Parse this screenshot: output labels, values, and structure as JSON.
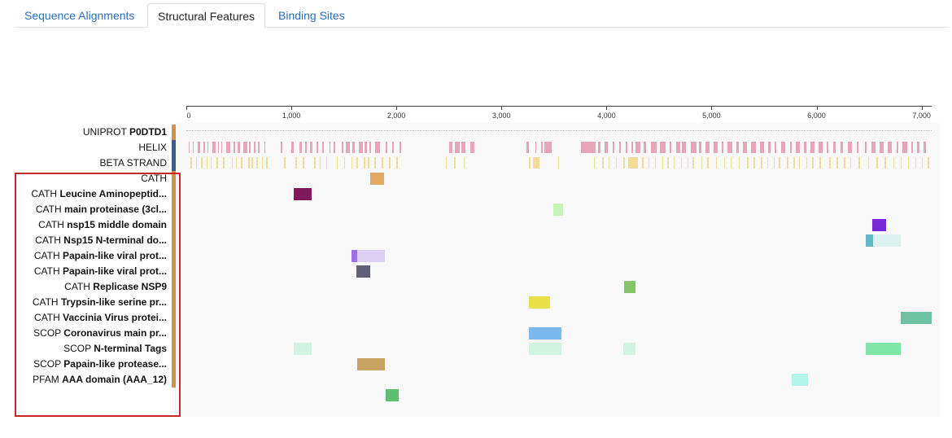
{
  "tabs": [
    {
      "label": "Sequence Alignments",
      "active": false
    },
    {
      "label": "Structural Features",
      "active": true
    },
    {
      "label": "Binding Sites",
      "active": false
    }
  ],
  "ruler": {
    "min": 0,
    "max": 7096,
    "ticks": [
      {
        "value": 0,
        "label": "0"
      },
      {
        "value": 1000,
        "label": "1,000"
      },
      {
        "value": 2000,
        "label": "2,000"
      },
      {
        "value": 3000,
        "label": "3,000"
      },
      {
        "value": 4000,
        "label": "4,000"
      },
      {
        "value": 5000,
        "label": "5,000"
      },
      {
        "value": 6000,
        "label": "6,000"
      },
      {
        "value": 7000,
        "label": "7,000"
      }
    ]
  },
  "tracks": [
    {
      "prefix": "UNIPROT",
      "name": "P0DTD1",
      "bar_color": "#d4914a",
      "type": "sequence",
      "features": []
    },
    {
      "prefix": "",
      "name": "",
      "label": "HELIX",
      "bar_color": "#3b5c8c",
      "type": "helix",
      "color": "#e8a4b8",
      "features": []
    },
    {
      "prefix": "",
      "name": "",
      "label": "BETA STRAND",
      "bar_color": "#3b5c8c",
      "type": "strand",
      "color": "#f3dc98",
      "features": []
    },
    {
      "prefix": "",
      "name": "",
      "label": "CATH",
      "bar_color": "#d4914a",
      "features": [
        {
          "start": 1750,
          "end": 1880,
          "color": "#e3a964"
        }
      ]
    },
    {
      "prefix": "CATH",
      "name": "Leucine Aminopeptid...",
      "bar_color": "#d4914a",
      "features": [
        {
          "start": 1020,
          "end": 1190,
          "color": "#80185a"
        }
      ]
    },
    {
      "prefix": "CATH",
      "name": "main proteinase (3cl...",
      "bar_color": "#d4914a",
      "features": [
        {
          "start": 3490,
          "end": 3590,
          "color": "#c8f3b6"
        }
      ]
    },
    {
      "prefix": "CATH",
      "name": "nsp15 middle domain",
      "bar_color": "#d4914a",
      "features": [
        {
          "start": 6530,
          "end": 6660,
          "color": "#7a29d9"
        }
      ]
    },
    {
      "prefix": "CATH",
      "name": "Nsp15 N-terminal do...",
      "bar_color": "#d4914a",
      "features": [
        {
          "start": 6470,
          "end": 6540,
          "color": "#62b8c8"
        },
        {
          "start": 6540,
          "end": 6800,
          "color": "#dcf0f0"
        }
      ]
    },
    {
      "prefix": "CATH",
      "name": "Papain-like viral prot...",
      "bar_color": "#d4914a",
      "features": [
        {
          "start": 1570,
          "end": 1630,
          "color": "#9b70e8"
        },
        {
          "start": 1630,
          "end": 1890,
          "color": "#dcd0f3"
        }
      ]
    },
    {
      "prefix": "CATH",
      "name": "Papain-like viral prot...",
      "bar_color": "#d4914a",
      "features": [
        {
          "start": 1620,
          "end": 1750,
          "color": "#5f5f78"
        }
      ]
    },
    {
      "prefix": "CATH",
      "name": "Replicase NSP9",
      "bar_color": "#d4914a",
      "features": [
        {
          "start": 4170,
          "end": 4280,
          "color": "#86c56a"
        }
      ]
    },
    {
      "prefix": "CATH",
      "name": "Trypsin-like serine pr...",
      "bar_color": "#d4914a",
      "features": [
        {
          "start": 3260,
          "end": 3460,
          "color": "#e8e04a"
        }
      ]
    },
    {
      "prefix": "CATH",
      "name": "Vaccinia Virus protei...",
      "bar_color": "#d4914a",
      "features": [
        {
          "start": 6800,
          "end": 7096,
          "color": "#6ec2a4"
        }
      ]
    },
    {
      "prefix": "SCOP",
      "name": "Coronavirus main pr...",
      "bar_color": "#d4914a",
      "features": [
        {
          "start": 3260,
          "end": 3570,
          "color": "#7ab8f0"
        }
      ]
    },
    {
      "prefix": "SCOP",
      "name": "N-terminal Tags",
      "bar_color": "#d4914a",
      "features": [
        {
          "start": 1020,
          "end": 1190,
          "color": "#d2f3e2"
        },
        {
          "start": 3260,
          "end": 3570,
          "color": "#d2f3e2"
        },
        {
          "start": 4160,
          "end": 4280,
          "color": "#d2f3e2"
        },
        {
          "start": 6470,
          "end": 6800,
          "color": "#7ee4a8"
        }
      ]
    },
    {
      "prefix": "SCOP",
      "name": "Papain-like protease...",
      "bar_color": "#d4914a",
      "features": [
        {
          "start": 1630,
          "end": 1890,
          "color": "#c9a363"
        }
      ]
    },
    {
      "prefix": "PFAM",
      "name": "AAA domain (AAA_12)",
      "bar_color": "#d4914a",
      "features": [
        {
          "start": 5760,
          "end": 5920,
          "color": "#b2f4e8"
        }
      ]
    },
    {
      "prefix": "",
      "name": "",
      "label": "",
      "bar_color": "",
      "features": [
        {
          "start": 1900,
          "end": 2020,
          "color": "#5cc070"
        }
      ]
    }
  ],
  "helix_segments": [
    [
      20,
      30
    ],
    [
      60,
      70
    ],
    [
      110,
      130
    ],
    [
      160,
      175
    ],
    [
      200,
      210
    ],
    [
      250,
      280
    ],
    [
      300,
      310
    ],
    [
      330,
      340
    ],
    [
      380,
      420
    ],
    [
      450,
      460
    ],
    [
      490,
      510
    ],
    [
      540,
      580
    ],
    [
      600,
      610
    ],
    [
      640,
      660
    ],
    [
      680,
      700
    ],
    [
      740,
      750
    ],
    [
      900,
      910
    ],
    [
      1000,
      1020
    ],
    [
      1080,
      1100
    ],
    [
      1130,
      1150
    ],
    [
      1180,
      1200
    ],
    [
      1240,
      1250
    ],
    [
      1290,
      1310
    ],
    [
      1360,
      1370
    ],
    [
      1400,
      1420
    ],
    [
      1480,
      1490
    ],
    [
      1520,
      1560
    ],
    [
      1580,
      1600
    ],
    [
      1640,
      1680
    ],
    [
      1700,
      1720
    ],
    [
      1740,
      1760
    ],
    [
      1800,
      1840
    ],
    [
      1900,
      1910
    ],
    [
      1960,
      1970
    ],
    [
      2030,
      2040
    ],
    [
      2500,
      2530
    ],
    [
      2560,
      2600
    ],
    [
      2620,
      2660
    ],
    [
      2700,
      2740
    ],
    [
      3240,
      3260
    ],
    [
      3320,
      3330
    ],
    [
      3380,
      3390
    ],
    [
      3410,
      3480
    ],
    [
      3760,
      3900
    ],
    [
      3920,
      3940
    ],
    [
      3980,
      4010
    ],
    [
      4060,
      4070
    ],
    [
      4120,
      4140
    ],
    [
      4180,
      4200
    ],
    [
      4240,
      4250
    ],
    [
      4280,
      4320
    ],
    [
      4350,
      4380
    ],
    [
      4420,
      4480
    ],
    [
      4510,
      4560
    ],
    [
      4600,
      4620
    ],
    [
      4660,
      4700
    ],
    [
      4720,
      4760
    ],
    [
      4800,
      4860
    ],
    [
      4880,
      4900
    ],
    [
      4940,
      4980
    ],
    [
      5020,
      5060
    ],
    [
      5100,
      5110
    ],
    [
      5150,
      5200
    ],
    [
      5240,
      5260
    ],
    [
      5300,
      5340
    ],
    [
      5380,
      5420
    ],
    [
      5460,
      5500
    ],
    [
      5540,
      5560
    ],
    [
      5600,
      5620
    ],
    [
      5660,
      5700
    ],
    [
      5750,
      5760
    ],
    [
      5800,
      5840
    ],
    [
      5880,
      5900
    ],
    [
      5940,
      5980
    ],
    [
      6020,
      6060
    ],
    [
      6100,
      6110
    ],
    [
      6160,
      6180
    ],
    [
      6230,
      6250
    ],
    [
      6300,
      6340
    ],
    [
      6380,
      6400
    ],
    [
      6460,
      6480
    ],
    [
      6520,
      6560
    ],
    [
      6600,
      6640
    ],
    [
      6680,
      6720
    ],
    [
      6760,
      6780
    ],
    [
      6820,
      6860
    ],
    [
      6900,
      6920
    ],
    [
      6960,
      6980
    ],
    [
      7020,
      7040
    ]
  ],
  "strand_segments": [
    [
      40,
      50
    ],
    [
      90,
      100
    ],
    [
      140,
      150
    ],
    [
      190,
      200
    ],
    [
      230,
      240
    ],
    [
      290,
      300
    ],
    [
      350,
      360
    ],
    [
      430,
      440
    ],
    [
      470,
      480
    ],
    [
      520,
      530
    ],
    [
      590,
      600
    ],
    [
      620,
      630
    ],
    [
      670,
      680
    ],
    [
      720,
      730
    ],
    [
      760,
      770
    ],
    [
      930,
      940
    ],
    [
      1040,
      1050
    ],
    [
      1110,
      1120
    ],
    [
      1220,
      1230
    ],
    [
      1270,
      1280
    ],
    [
      1330,
      1340
    ],
    [
      1430,
      1440
    ],
    [
      1500,
      1510
    ],
    [
      1570,
      1580
    ],
    [
      1620,
      1630
    ],
    [
      1690,
      1700
    ],
    [
      1730,
      1740
    ],
    [
      1790,
      1800
    ],
    [
      1860,
      1870
    ],
    [
      1930,
      1940
    ],
    [
      2000,
      2010
    ],
    [
      2470,
      2480
    ],
    [
      2550,
      2560
    ],
    [
      2640,
      2650
    ],
    [
      3260,
      3280
    ],
    [
      3300,
      3360
    ],
    [
      3540,
      3550
    ],
    [
      3880,
      3890
    ],
    [
      3960,
      3970
    ],
    [
      4020,
      4030
    ],
    [
      4090,
      4100
    ],
    [
      4160,
      4170
    ],
    [
      4210,
      4300
    ],
    [
      4340,
      4350
    ],
    [
      4400,
      4410
    ],
    [
      4460,
      4470
    ],
    [
      4530,
      4540
    ],
    [
      4580,
      4590
    ],
    [
      4640,
      4650
    ],
    [
      4710,
      4720
    ],
    [
      4770,
      4780
    ],
    [
      4820,
      4830
    ],
    [
      4900,
      4910
    ],
    [
      4960,
      4970
    ],
    [
      5040,
      5050
    ],
    [
      5120,
      5130
    ],
    [
      5180,
      5190
    ],
    [
      5260,
      5270
    ],
    [
      5340,
      5350
    ],
    [
      5400,
      5410
    ],
    [
      5470,
      5480
    ],
    [
      5530,
      5540
    ],
    [
      5590,
      5600
    ],
    [
      5640,
      5650
    ],
    [
      5720,
      5730
    ],
    [
      5780,
      5790
    ],
    [
      5830,
      5840
    ],
    [
      5900,
      5910
    ],
    [
      5960,
      5970
    ],
    [
      6030,
      6040
    ],
    [
      6120,
      6130
    ],
    [
      6190,
      6200
    ],
    [
      6260,
      6270
    ],
    [
      6320,
      6330
    ],
    [
      6400,
      6410
    ],
    [
      6490,
      6500
    ],
    [
      6570,
      6580
    ],
    [
      6650,
      6660
    ],
    [
      6730,
      6740
    ],
    [
      6800,
      6810
    ],
    [
      6870,
      6880
    ],
    [
      6940,
      6950
    ],
    [
      7000,
      7010
    ],
    [
      7060,
      7070
    ]
  ]
}
